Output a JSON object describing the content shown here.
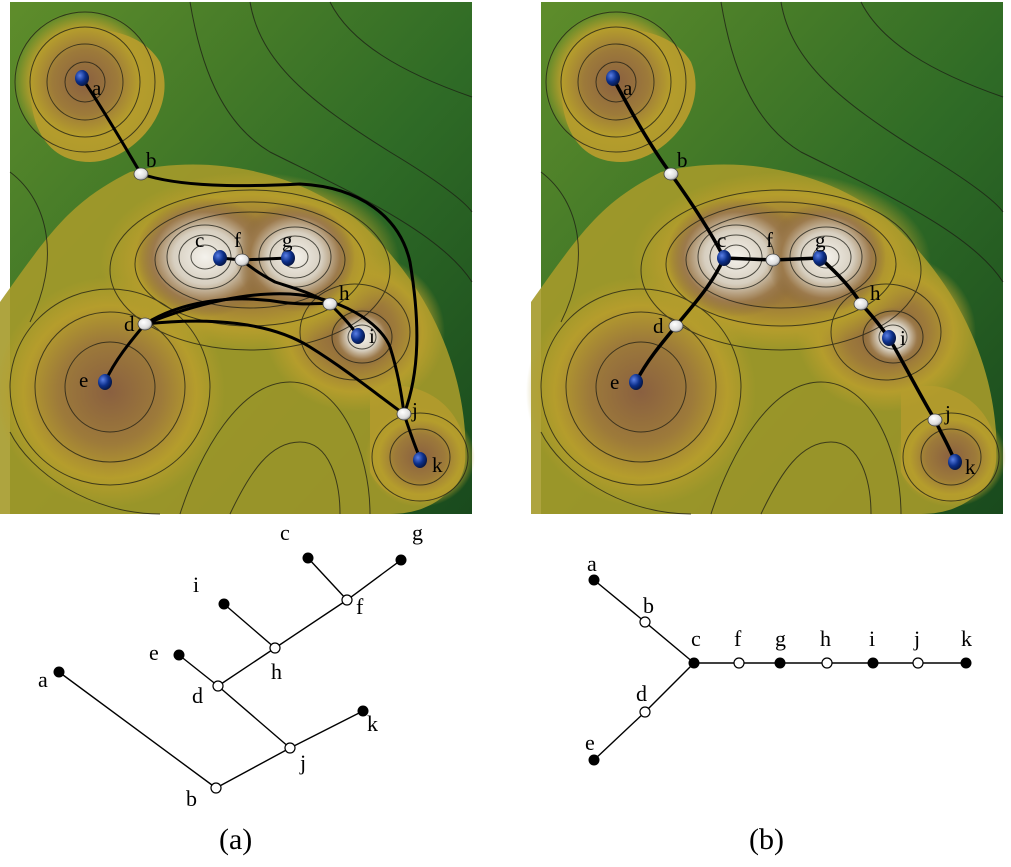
{
  "labels": {
    "a": "a",
    "b": "b",
    "c": "c",
    "d": "d",
    "e": "e",
    "f": "f",
    "g": "g",
    "h": "h",
    "i": "i",
    "j": "j",
    "k": "k"
  },
  "captions": {
    "left": "(a)",
    "right": "(b)"
  },
  "colors": {
    "terrain_low": "#1f5a22",
    "terrain_mid": "#b7a52a",
    "terrain_high": "#7a5534",
    "peak_light": "#e8e6e0",
    "maximum_node": "#0c2f8a",
    "saddle_node": "#ffffff",
    "edge": "#000000"
  },
  "node_types": {
    "maxima": [
      "a",
      "c",
      "e",
      "g",
      "i",
      "k"
    ],
    "saddles": [
      "b",
      "d",
      "f",
      "h",
      "j"
    ]
  },
  "edges_a": [
    [
      "a",
      "b"
    ],
    [
      "b",
      "j"
    ],
    [
      "j",
      "k"
    ],
    [
      "j",
      "d"
    ],
    [
      "d",
      "e"
    ],
    [
      "d",
      "h"
    ],
    [
      "h",
      "i"
    ],
    [
      "h",
      "f"
    ],
    [
      "f",
      "c"
    ],
    [
      "f",
      "g"
    ]
  ],
  "edges_b": [
    [
      "a",
      "b"
    ],
    [
      "b",
      "c"
    ],
    [
      "c",
      "d"
    ],
    [
      "d",
      "e"
    ],
    [
      "c",
      "f"
    ],
    [
      "f",
      "g"
    ],
    [
      "g",
      "h"
    ],
    [
      "h",
      "i"
    ],
    [
      "i",
      "j"
    ],
    [
      "j",
      "k"
    ]
  ]
}
